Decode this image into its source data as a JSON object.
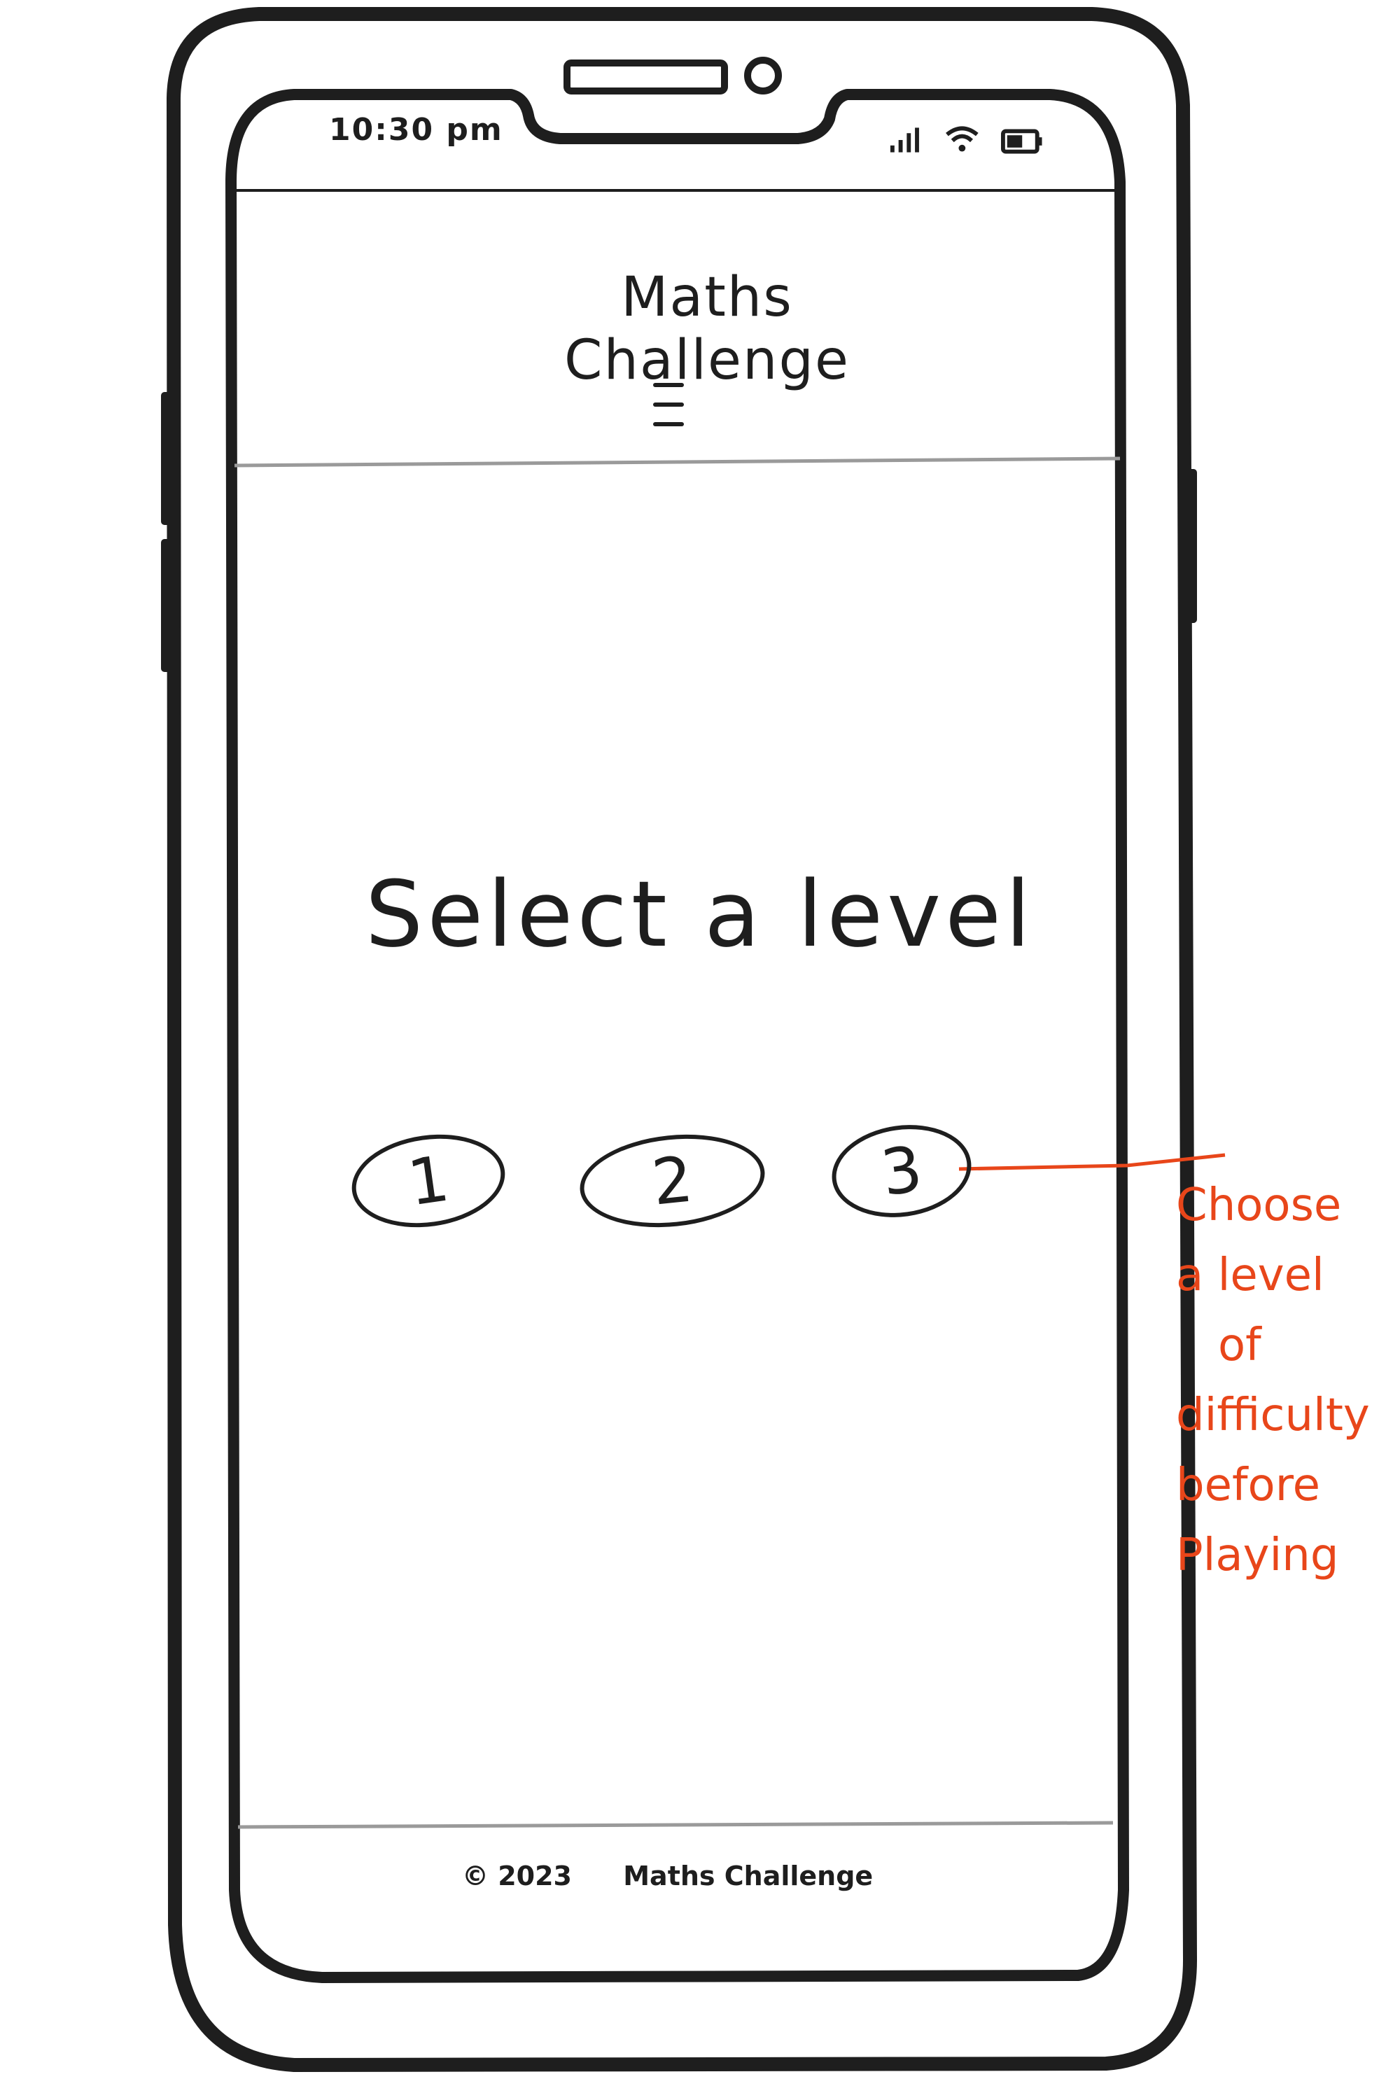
{
  "status_bar": {
    "time": "10:30 pm",
    "icons": [
      "signal-icon",
      "wifi-icon",
      "battery-icon"
    ]
  },
  "header": {
    "title": "Maths Challenge",
    "menu_icon": "hamburger-menu-icon"
  },
  "main": {
    "prompt": "Select a level",
    "levels": [
      {
        "label": "1"
      },
      {
        "label": "2"
      },
      {
        "label": "3"
      }
    ]
  },
  "annotation": {
    "lines": [
      "Choose",
      "a level",
      "of",
      "difficulty",
      "before",
      "Playing"
    ],
    "color": "#e8461a"
  },
  "footer": {
    "copyright": "© 2023",
    "name": "Maths Challenge"
  },
  "colors": {
    "ink": "#1e1e1e",
    "divider": "#9a9a9a",
    "annotation": "#e8461a"
  }
}
